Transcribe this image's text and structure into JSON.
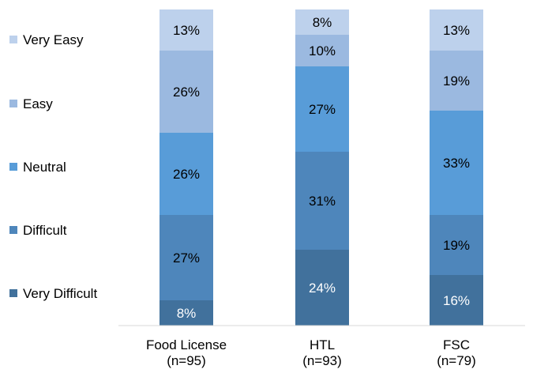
{
  "chart_data": {
    "type": "bar",
    "stacked": true,
    "percent": true,
    "categories": [
      [
        "Food License",
        "(n=95)"
      ],
      [
        "HTL",
        "(n=93)"
      ],
      [
        "FSC",
        "(n=79)"
      ]
    ],
    "series": [
      {
        "name": "Very Difficult",
        "values": [
          8,
          24,
          16
        ],
        "color": "#41719c"
      },
      {
        "name": "Difficult",
        "values": [
          27,
          31,
          19
        ],
        "color": "#4e86bb"
      },
      {
        "name": "Neutral",
        "values": [
          26,
          27,
          33
        ],
        "color": "#589cd8"
      },
      {
        "name": "Easy",
        "values": [
          26,
          10,
          19
        ],
        "color": "#9bb9e0"
      },
      {
        "name": "Very Easy",
        "values": [
          13,
          8,
          13
        ],
        "color": "#bdd1ec"
      }
    ],
    "data_label_suffix": "%",
    "ylim": [
      0,
      100
    ],
    "legend_position": "left",
    "grid": false,
    "title": "",
    "xlabel": "",
    "ylabel": ""
  }
}
